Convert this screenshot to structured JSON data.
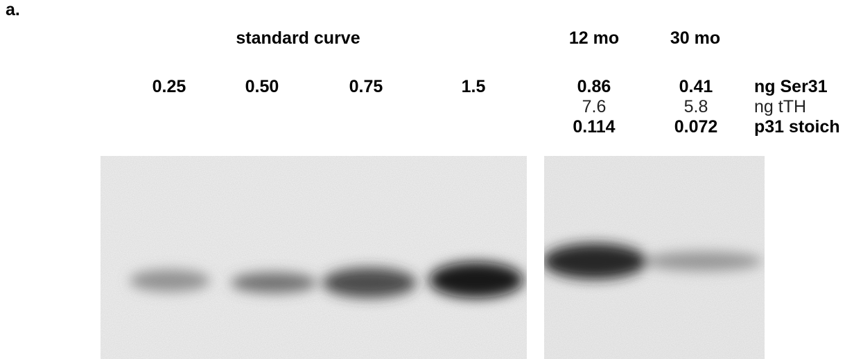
{
  "panel_label": "a.",
  "groups": [
    "standard curve",
    "12 mo",
    "30 mo"
  ],
  "rows": [
    {
      "values": [
        "0.25",
        "0.50",
        "0.75",
        "1.5",
        "0.86",
        "0.41"
      ],
      "label": "ng Ser31"
    },
    {
      "values": [
        "7.6",
        "5.8"
      ],
      "label": "ng tTH"
    },
    {
      "values": [
        "0.114",
        "0.072"
      ],
      "label": "p31 stoich"
    }
  ]
}
